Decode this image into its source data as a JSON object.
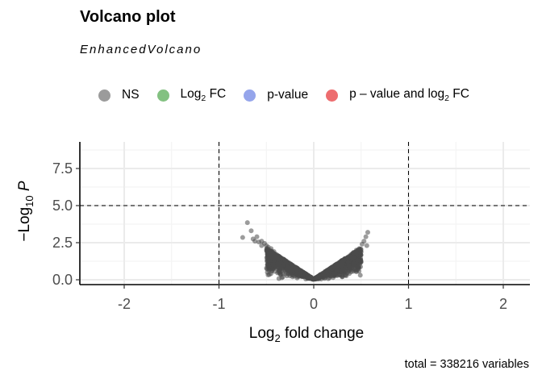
{
  "header": {
    "title": "Volcano plot",
    "subtitle": "EnhancedVolcano"
  },
  "legend": {
    "items": [
      {
        "label": "NS",
        "color": "#8a8a8a"
      },
      {
        "label": "Log",
        "sub": "2",
        "suffix": " FC",
        "color": "#5aac57"
      },
      {
        "label": "p-value",
        "color": "#7b8fe6"
      },
      {
        "label": "p – value and log",
        "sub": "2",
        "suffix": " FC",
        "color": "#e8484b"
      }
    ]
  },
  "caption": "total = 338216 variables",
  "chart_data": {
    "type": "scatter",
    "title": "Volcano plot",
    "subtitle": "EnhancedVolcano",
    "xlabel": "Log2 fold change",
    "ylabel": "−Log10 P",
    "xlim": [
      -2.5,
      2.8
    ],
    "ylim": [
      -0.3,
      9.2
    ],
    "x_ticks": [
      -2,
      -1,
      0,
      1,
      2
    ],
    "y_ticks": [
      0.0,
      2.5,
      5.0,
      7.5
    ],
    "y_tick_labels": [
      "0.0",
      "2.5",
      "5.0",
      "7.5"
    ],
    "x_tick_labels": [
      "-2",
      "-1",
      "0",
      "1",
      "2"
    ],
    "fc_cutoff": 1,
    "p_cutoff_neglog10": 5,
    "grid": true,
    "series": [
      {
        "name": "NS",
        "color": "#4a4a4a",
        "note_points": "dense V-shaped cloud, outliers listed",
        "points": [
          [
            -0.7,
            3.85
          ],
          [
            -0.66,
            3.3
          ],
          [
            -0.75,
            2.85
          ],
          [
            -0.64,
            2.75
          ],
          [
            -0.6,
            2.9
          ],
          [
            -0.58,
            2.55
          ],
          [
            -0.55,
            2.6
          ],
          [
            -0.52,
            2.45
          ],
          [
            -0.5,
            2.3
          ],
          [
            -0.62,
            2.6
          ],
          [
            -0.48,
            2.2
          ],
          [
            -0.45,
            2.1
          ],
          [
            -0.55,
            2.3
          ],
          [
            -0.42,
            1.9
          ],
          [
            0.57,
            3.2
          ],
          [
            0.55,
            2.9
          ],
          [
            0.53,
            2.6
          ],
          [
            0.56,
            2.3
          ],
          [
            0.48,
            2.1
          ],
          [
            0.45,
            2.0
          ],
          [
            0.51,
            2.4
          ],
          [
            0.42,
            1.85
          ],
          [
            0.5,
            1.9
          ]
        ]
      }
    ],
    "caption": "total = 338216 variables"
  }
}
